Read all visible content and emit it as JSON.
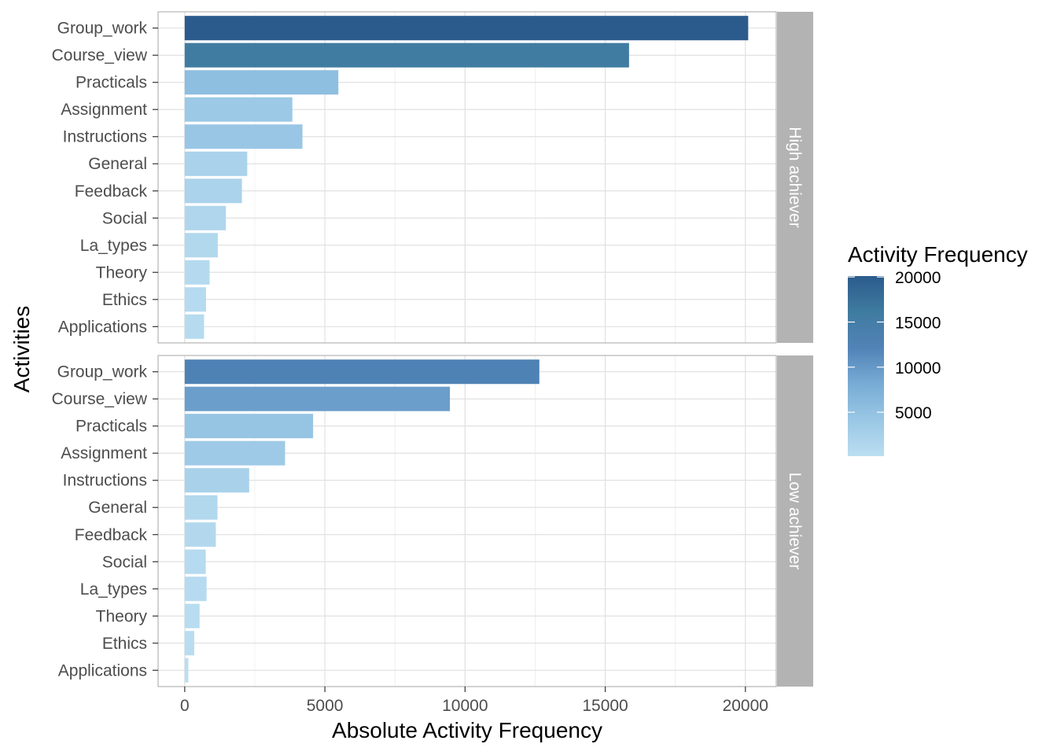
{
  "chart_data": {
    "type": "bar",
    "orientation": "horizontal",
    "xlabel": "Absolute Activity Frequency",
    "ylabel": "Activities",
    "xlim": [
      -950,
      21100
    ],
    "x_ticks": [
      "0",
      "5000",
      "10000",
      "15000",
      "20000"
    ],
    "x_tick_values": [
      0,
      5000,
      10000,
      15000,
      20000
    ],
    "grid": true,
    "categories": [
      "Group_work",
      "Course_view",
      "Practicals",
      "Assignment",
      "Instructions",
      "General",
      "Feedback",
      "Social",
      "La_types",
      "Theory",
      "Ethics",
      "Applications"
    ],
    "facets": [
      {
        "label": "High achiever",
        "values": [
          20100,
          15850,
          5480,
          3840,
          4200,
          2230,
          2040,
          1470,
          1180,
          890,
          760,
          690
        ]
      },
      {
        "label": "Low achiever",
        "values": [
          12650,
          9460,
          4580,
          3580,
          2300,
          1170,
          1110,
          750,
          780,
          530,
          340,
          130
        ]
      }
    ],
    "legend": {
      "title": "Activity Frequency",
      "position": "right",
      "labels": [
        "20000",
        "15000",
        "10000",
        "5000"
      ],
      "label_values": [
        20000,
        15000,
        10000,
        5000
      ],
      "range": [
        130,
        20100
      ],
      "gradient_colors": [
        "#BBDEF1",
        "#9AC7E5",
        "#78ACD5",
        "#5283B7",
        "#3F7BA0",
        "#2B5B8C"
      ]
    }
  }
}
